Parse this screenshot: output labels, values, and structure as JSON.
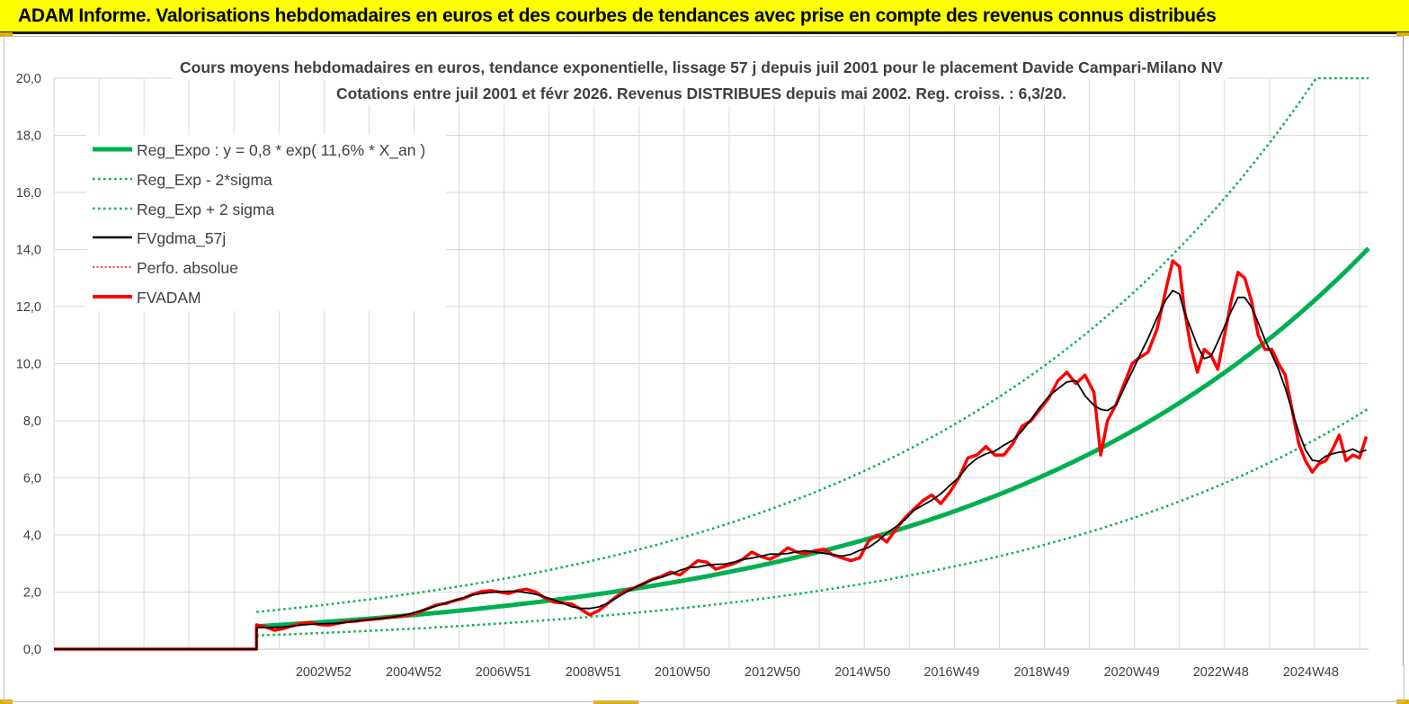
{
  "banner": {
    "title": "ADAM Informe. Valorisations hebdomadaires en euros et des courbes de tendances avec prise en compte des revenus connus distribués"
  },
  "colors": {
    "banner_bg": "#ffff00",
    "reg_expo": "#00b050",
    "sigma": "#00b050",
    "fvgdma": "#000000",
    "perfo": "#ff0000",
    "fvadam": "#ff0000",
    "grid": "#d9d9d9"
  },
  "chart_data": {
    "type": "line",
    "title_line1": "Cours moyens hebdomadaires en euros, tendance exponentielle, lissage 57 j depuis juil 2001 pour le placement Davide Campari-Milano NV",
    "title_line2": "Cotations entre juil 2001 et févr 2026. Revenus DISTRIBUES depuis mai 2002. Reg. croiss. : 6,3/20.",
    "ylim": [
      0,
      20
    ],
    "y_ticks": [
      "0,0",
      "2,0",
      "4,0",
      "6,0",
      "8,0",
      "10,0",
      "12,0",
      "14,0",
      "16,0",
      "18,0",
      "20,0"
    ],
    "x_start_year": 1997.0,
    "x_end_year": 2026.2,
    "data_start_year": 2001.5,
    "x_ticks": [
      {
        "label": "2002W52",
        "year": 2002.99
      },
      {
        "label": "2004W52",
        "year": 2004.99
      },
      {
        "label": "2006W51",
        "year": 2006.98
      },
      {
        "label": "2008W51",
        "year": 2008.98
      },
      {
        "label": "2010W50",
        "year": 2010.96
      },
      {
        "label": "2012W50",
        "year": 2012.96
      },
      {
        "label": "2014W50",
        "year": 2014.96
      },
      {
        "label": "2016W49",
        "year": 2016.94
      },
      {
        "label": "2018W49",
        "year": 2018.94
      },
      {
        "label": "2020W49",
        "year": 2020.94
      },
      {
        "label": "2022W48",
        "year": 2022.92
      },
      {
        "label": "2024W48",
        "year": 2024.92
      }
    ],
    "legend_position": "top-left",
    "legend": [
      {
        "key": "reg_expo",
        "label": "Reg_Expo : y = 0,8 * exp( 11,6% *  X_an )",
        "style": "thick-solid"
      },
      {
        "key": "reg_minus",
        "label": "Reg_Exp - 2*sigma",
        "style": "dotted"
      },
      {
        "key": "reg_plus",
        "label": "Reg_Exp + 2 sigma",
        "style": "dotted"
      },
      {
        "key": "fvgdma",
        "label": "FVgdma_57j",
        "style": "solid"
      },
      {
        "key": "perfo",
        "label": "Perfo. absolue",
        "style": "dotted"
      },
      {
        "key": "fvadam",
        "label": "FVADAM",
        "style": "thick-solid"
      }
    ],
    "reg_expo": {
      "a": 0.8,
      "rate": 0.116,
      "sigma_plus_factor": 1.63,
      "sigma_minus_factor": 0.6,
      "cap": 20
    },
    "series": [
      {
        "name": "FVADAM",
        "points": [
          [
            2001.5,
            0.85
          ],
          [
            2001.7,
            0.78
          ],
          [
            2001.9,
            0.66
          ],
          [
            2002.1,
            0.72
          ],
          [
            2002.3,
            0.82
          ],
          [
            2002.5,
            0.9
          ],
          [
            2002.7,
            0.93
          ],
          [
            2002.9,
            0.86
          ],
          [
            2003.1,
            0.84
          ],
          [
            2003.3,
            0.9
          ],
          [
            2003.5,
            0.96
          ],
          [
            2003.7,
            0.98
          ],
          [
            2003.9,
            1.02
          ],
          [
            2004.1,
            1.05
          ],
          [
            2004.3,
            1.08
          ],
          [
            2004.5,
            1.12
          ],
          [
            2004.7,
            1.15
          ],
          [
            2004.9,
            1.2
          ],
          [
            2005.1,
            1.3
          ],
          [
            2005.3,
            1.42
          ],
          [
            2005.5,
            1.55
          ],
          [
            2005.7,
            1.6
          ],
          [
            2005.9,
            1.7
          ],
          [
            2006.1,
            1.78
          ],
          [
            2006.3,
            1.92
          ],
          [
            2006.5,
            2.02
          ],
          [
            2006.7,
            2.05
          ],
          [
            2006.9,
            2.0
          ],
          [
            2007.1,
            1.95
          ],
          [
            2007.3,
            2.05
          ],
          [
            2007.5,
            2.1
          ],
          [
            2007.7,
            2.0
          ],
          [
            2007.9,
            1.8
          ],
          [
            2008.1,
            1.65
          ],
          [
            2008.3,
            1.62
          ],
          [
            2008.5,
            1.58
          ],
          [
            2008.7,
            1.4
          ],
          [
            2008.9,
            1.2
          ],
          [
            2009.1,
            1.35
          ],
          [
            2009.3,
            1.6
          ],
          [
            2009.5,
            1.85
          ],
          [
            2009.7,
            2.05
          ],
          [
            2009.9,
            2.15
          ],
          [
            2010.1,
            2.3
          ],
          [
            2010.3,
            2.45
          ],
          [
            2010.5,
            2.55
          ],
          [
            2010.7,
            2.7
          ],
          [
            2010.9,
            2.6
          ],
          [
            2011.1,
            2.85
          ],
          [
            2011.3,
            3.1
          ],
          [
            2011.5,
            3.05
          ],
          [
            2011.7,
            2.8
          ],
          [
            2011.9,
            2.9
          ],
          [
            2012.1,
            3.0
          ],
          [
            2012.3,
            3.15
          ],
          [
            2012.5,
            3.4
          ],
          [
            2012.7,
            3.25
          ],
          [
            2012.9,
            3.15
          ],
          [
            2013.1,
            3.3
          ],
          [
            2013.3,
            3.55
          ],
          [
            2013.5,
            3.4
          ],
          [
            2013.7,
            3.35
          ],
          [
            2013.9,
            3.45
          ],
          [
            2014.1,
            3.5
          ],
          [
            2014.3,
            3.3
          ],
          [
            2014.5,
            3.2
          ],
          [
            2014.7,
            3.1
          ],
          [
            2014.9,
            3.2
          ],
          [
            2015.1,
            3.8
          ],
          [
            2015.3,
            4.0
          ],
          [
            2015.5,
            3.75
          ],
          [
            2015.7,
            4.2
          ],
          [
            2015.9,
            4.6
          ],
          [
            2016.1,
            4.9
          ],
          [
            2016.3,
            5.2
          ],
          [
            2016.5,
            5.4
          ],
          [
            2016.7,
            5.1
          ],
          [
            2016.9,
            5.5
          ],
          [
            2017.1,
            6.0
          ],
          [
            2017.3,
            6.7
          ],
          [
            2017.5,
            6.8
          ],
          [
            2017.7,
            7.1
          ],
          [
            2017.9,
            6.8
          ],
          [
            2018.1,
            6.8
          ],
          [
            2018.3,
            7.2
          ],
          [
            2018.5,
            7.8
          ],
          [
            2018.7,
            8.0
          ],
          [
            2018.9,
            8.4
          ],
          [
            2019.1,
            8.8
          ],
          [
            2019.3,
            9.4
          ],
          [
            2019.5,
            9.7
          ],
          [
            2019.7,
            9.3
          ],
          [
            2019.9,
            9.6
          ],
          [
            2020.1,
            9.0
          ],
          [
            2020.25,
            6.8
          ],
          [
            2020.4,
            8.0
          ],
          [
            2020.6,
            8.6
          ],
          [
            2020.8,
            9.4
          ],
          [
            2020.95,
            10.0
          ],
          [
            2021.1,
            10.2
          ],
          [
            2021.3,
            10.4
          ],
          [
            2021.5,
            11.2
          ],
          [
            2021.7,
            12.6
          ],
          [
            2021.85,
            13.6
          ],
          [
            2022.0,
            13.4
          ],
          [
            2022.1,
            12.0
          ],
          [
            2022.25,
            10.6
          ],
          [
            2022.4,
            9.7
          ],
          [
            2022.55,
            10.5
          ],
          [
            2022.7,
            10.3
          ],
          [
            2022.85,
            9.8
          ],
          [
            2023.0,
            11.0
          ],
          [
            2023.15,
            12.2
          ],
          [
            2023.3,
            13.2
          ],
          [
            2023.45,
            13.0
          ],
          [
            2023.6,
            12.2
          ],
          [
            2023.75,
            11.0
          ],
          [
            2023.9,
            10.5
          ],
          [
            2024.05,
            10.5
          ],
          [
            2024.2,
            10.0
          ],
          [
            2024.35,
            9.6
          ],
          [
            2024.5,
            8.4
          ],
          [
            2024.65,
            7.2
          ],
          [
            2024.8,
            6.6
          ],
          [
            2024.95,
            6.2
          ],
          [
            2025.1,
            6.5
          ],
          [
            2025.25,
            6.6
          ],
          [
            2025.4,
            7.0
          ],
          [
            2025.55,
            7.5
          ],
          [
            2025.7,
            6.6
          ],
          [
            2025.85,
            6.8
          ],
          [
            2026.0,
            6.7
          ],
          [
            2026.15,
            7.45
          ]
        ]
      }
    ]
  }
}
